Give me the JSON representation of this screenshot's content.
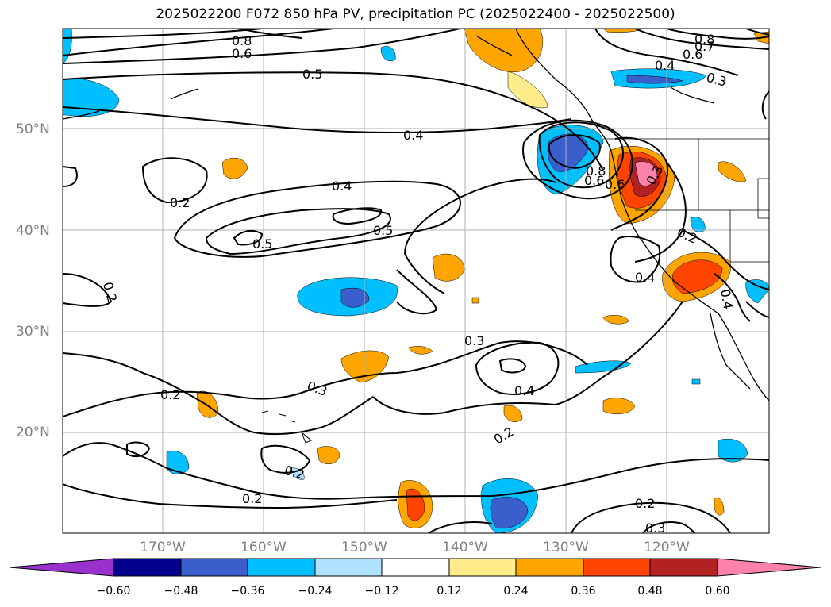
{
  "title": "2025022200 F072 850 hPa PV, precipitation PC (2025022400 - 2025022500)",
  "lat_labels": [
    "50°N",
    "40°N",
    "30°N",
    "20°N"
  ],
  "lon_labels": [
    "170°W",
    "160°W",
    "150°W",
    "140°W",
    "130°W",
    "120°W"
  ],
  "contour_labels": [
    "0.8",
    "0.6",
    "0.5",
    "0.4",
    "0.4",
    "0.5",
    "0.5",
    "0.2",
    "0.2",
    "0.3",
    "0.2",
    "0.3",
    "0.4",
    "0.2",
    "0.2",
    "0.2",
    "0.3",
    "0.8",
    "0.6",
    "0.6",
    "0.4",
    "0.3",
    "0.6",
    "0.7",
    "0.8",
    "0.4",
    "0.2",
    "0.3",
    "0.2",
    "0.4"
  ],
  "colorbar": {
    "tick_labels": [
      "−0.60",
      "−0.48",
      "−0.36",
      "−0.24",
      "−0.12",
      "0.12",
      "0.24",
      "0.36",
      "0.48",
      "0.60"
    ],
    "colors": [
      "#9932cc",
      "#00008b",
      "#3a5fcd",
      "#00bfff",
      "#b0e2ff",
      "#ffffff",
      "#ffec8b",
      "#ffa500",
      "#ff4500",
      "#b22222",
      "#ff82ab"
    ]
  }
}
